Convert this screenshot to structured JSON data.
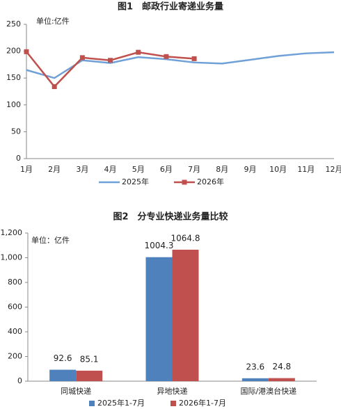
{
  "chart_data": [
    {
      "type": "line",
      "title": "图1　邮政行业寄递业务量",
      "unit_label": "单位:亿件",
      "categories": [
        "1月",
        "2月",
        "3月",
        "4月",
        "5月",
        "6月",
        "7月",
        "8月",
        "9月",
        "10月",
        "11月",
        "12月"
      ],
      "series": [
        {
          "name": "2025年",
          "color": "#6fa0d8",
          "marker": "none",
          "values": [
            165,
            150,
            183,
            178,
            189,
            185,
            179,
            177,
            184,
            191,
            196,
            198
          ]
        },
        {
          "name": "2026年",
          "color": "#c0504d",
          "marker": "square",
          "values": [
            199,
            134,
            188,
            183,
            198,
            190,
            186,
            null,
            null,
            null,
            null,
            null
          ]
        }
      ],
      "ylim": [
        0,
        250
      ],
      "yticks": [
        0,
        50,
        100,
        150,
        200,
        250
      ],
      "legend": "bottom"
    },
    {
      "type": "bar",
      "title": "图2　分专业快递业务量比较",
      "unit_label": "单位：亿件",
      "categories": [
        "同城快递",
        "异地快递",
        "国际/港澳台快递"
      ],
      "series": [
        {
          "name": "2025年1-7月",
          "color": "#4f81bd",
          "values": [
            92.6,
            1004.3,
            23.6
          ]
        },
        {
          "name": "2026年1-7月",
          "color": "#c0504d",
          "values": [
            85.1,
            1064.8,
            24.8
          ]
        }
      ],
      "ylim": [
        0,
        1200
      ],
      "yticks": [
        0,
        200,
        400,
        600,
        800,
        {
          "value": 1000,
          "label": "1,000"
        },
        {
          "value": 1200,
          "label": "1,200"
        }
      ],
      "legend": "bottom"
    }
  ]
}
